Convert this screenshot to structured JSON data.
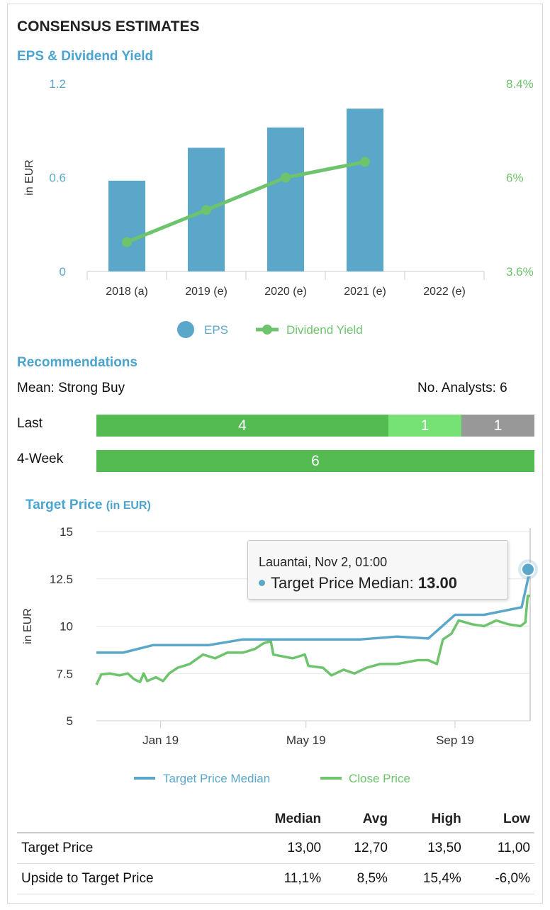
{
  "header": {
    "title": "CONSENSUS ESTIMATES"
  },
  "eps_section": {
    "title": "EPS & Dividend Yield"
  },
  "recommendations": {
    "title": "Recommendations",
    "mean_label": "Mean: Strong Buy",
    "analysts_label": "No. Analysts: 6",
    "rows": [
      {
        "label": "Last",
        "segments": [
          {
            "value": "4",
            "count": 4,
            "color": "#53bb52"
          },
          {
            "value": "1",
            "count": 1,
            "color": "#76e275"
          },
          {
            "value": "1",
            "count": 1,
            "color": "#989898"
          }
        ]
      },
      {
        "label": "4-Week",
        "segments": [
          {
            "value": "6",
            "count": 6,
            "color": "#53bb52"
          }
        ]
      }
    ]
  },
  "target_section": {
    "title": "Target Price",
    "unit": "(in EUR)"
  },
  "tooltip": {
    "date": "Lauantai, Nov 2, 01:00",
    "series": "Target Price Median: ",
    "value": "13.00"
  },
  "stats_table": {
    "headers": [
      "",
      "Median",
      "Avg",
      "High",
      "Low"
    ],
    "rows": [
      [
        "Target Price",
        "13,00",
        "12,70",
        "13,50",
        "11,00"
      ],
      [
        "Upside to Target Price",
        "11,1%",
        "8,5%",
        "15,4%",
        "-6,0%"
      ]
    ]
  },
  "chart_data": [
    {
      "type": "bar",
      "title": "EPS & Dividend Yield",
      "categories": [
        "2018 (a)",
        "2019 (e)",
        "2020 (e)",
        "2021 (e)",
        "2022 (e)"
      ],
      "ylabel": "in EUR",
      "ylim": [
        0,
        1.2
      ],
      "y_ticks": [
        "0",
        "0.6",
        "1.2"
      ],
      "y2lim": [
        3.6,
        8.4
      ],
      "y2_ticks": [
        "3.6%",
        "6%",
        "8.4%"
      ],
      "series": [
        {
          "name": "EPS",
          "type": "bar",
          "axis": "left",
          "color": "#5aa7c9",
          "values": [
            0.58,
            0.79,
            0.92,
            1.04,
            null
          ]
        },
        {
          "name": "Dividend Yield",
          "type": "line",
          "axis": "right",
          "color": "#6dc46c",
          "values": [
            4.35,
            5.17,
            6.0,
            6.4,
            null
          ]
        }
      ],
      "legend": "bottom"
    },
    {
      "type": "line",
      "title": "Target Price",
      "ylabel": "in EUR",
      "ylim": [
        5,
        15
      ],
      "y_ticks": [
        "5",
        "7.5",
        "10",
        "12.5",
        "15"
      ],
      "x_ticks": [
        "Jan 19",
        "May 19",
        "Sep 19"
      ],
      "x_range": [
        "2018-11-09",
        "2019-11-02"
      ],
      "x_tick_dates": [
        "2019-01-01",
        "2019-05-01",
        "2019-09-01"
      ],
      "legend": "bottom",
      "series": [
        {
          "name": "Target Price Median",
          "color": "#5aa7c9",
          "points": [
            [
              "2018-11-09",
              8.6
            ],
            [
              "2018-12-01",
              8.6
            ],
            [
              "2018-12-26",
              9.0
            ],
            [
              "2019-02-10",
              9.0
            ],
            [
              "2019-03-10",
              9.3
            ],
            [
              "2019-06-15",
              9.3
            ],
            [
              "2019-07-15",
              9.45
            ],
            [
              "2019-08-10",
              9.35
            ],
            [
              "2019-09-01",
              10.6
            ],
            [
              "2019-09-25",
              10.6
            ],
            [
              "2019-10-26",
              11.0
            ],
            [
              "2019-11-02",
              13.0
            ]
          ]
        },
        {
          "name": "Close Price",
          "color": "#6dc46c",
          "points": [
            [
              "2018-11-09",
              6.9
            ],
            [
              "2018-11-13",
              7.45
            ],
            [
              "2018-11-20",
              7.5
            ],
            [
              "2018-11-28",
              7.4
            ],
            [
              "2018-12-05",
              7.5
            ],
            [
              "2018-12-10",
              7.2
            ],
            [
              "2018-12-15",
              7.05
            ],
            [
              "2018-12-18",
              7.5
            ],
            [
              "2018-12-21",
              7.1
            ],
            [
              "2018-12-28",
              7.3
            ],
            [
              "2019-01-03",
              7.1
            ],
            [
              "2019-01-08",
              7.5
            ],
            [
              "2019-01-15",
              7.8
            ],
            [
              "2019-01-25",
              8.0
            ],
            [
              "2019-02-05",
              8.5
            ],
            [
              "2019-02-15",
              8.3
            ],
            [
              "2019-02-25",
              8.6
            ],
            [
              "2019-03-10",
              8.6
            ],
            [
              "2019-03-20",
              8.8
            ],
            [
              "2019-03-27",
              9.1
            ],
            [
              "2019-04-02",
              9.2
            ],
            [
              "2019-04-04",
              8.5
            ],
            [
              "2019-04-20",
              8.3
            ],
            [
              "2019-04-30",
              8.5
            ],
            [
              "2019-05-03",
              7.9
            ],
            [
              "2019-05-15",
              7.8
            ],
            [
              "2019-05-22",
              7.4
            ],
            [
              "2019-06-01",
              7.7
            ],
            [
              "2019-06-10",
              7.5
            ],
            [
              "2019-06-20",
              7.8
            ],
            [
              "2019-07-01",
              8.0
            ],
            [
              "2019-07-15",
              8.0
            ],
            [
              "2019-08-01",
              8.2
            ],
            [
              "2019-08-10",
              8.2
            ],
            [
              "2019-08-17",
              8.0
            ],
            [
              "2019-08-22",
              9.3
            ],
            [
              "2019-08-29",
              9.6
            ],
            [
              "2019-09-04",
              10.3
            ],
            [
              "2019-09-15",
              10.1
            ],
            [
              "2019-09-25",
              10.0
            ],
            [
              "2019-10-05",
              10.3
            ],
            [
              "2019-10-15",
              10.1
            ],
            [
              "2019-10-25",
              10.0
            ],
            [
              "2019-10-29",
              10.2
            ],
            [
              "2019-10-31",
              11.6
            ],
            [
              "2019-11-02",
              11.6
            ]
          ]
        }
      ]
    }
  ]
}
